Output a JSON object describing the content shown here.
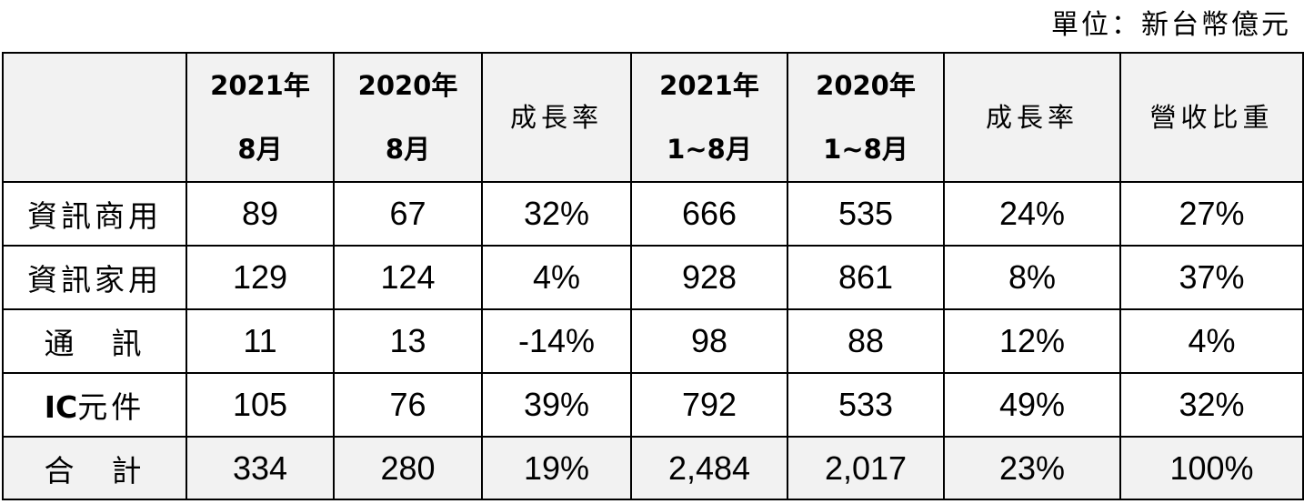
{
  "unit_label": "單位：新台幣億元",
  "header": {
    "c0": "",
    "c1_l1": "2021年",
    "c1_l2": "8月",
    "c2_l1": "2020年",
    "c2_l2": "8月",
    "c3": "成長率",
    "c4_l1": "2021年",
    "c4_l2": "1~8月",
    "c5_l1": "2020年",
    "c5_l2": "1~8月",
    "c6": "成長率",
    "c7": "營收比重"
  },
  "rows": [
    {
      "label": "資訊商用",
      "v": [
        "89",
        "67",
        "32%",
        "666",
        "535",
        "24%",
        "27%"
      ]
    },
    {
      "label": "資訊家用",
      "v": [
        "129",
        "124",
        "4%",
        "928",
        "861",
        "8%",
        "37%"
      ]
    },
    {
      "label": "通　訊",
      "v": [
        "11",
        "13",
        "-14%",
        "98",
        "88",
        "12%",
        "4%"
      ]
    },
    {
      "label_prefix": "IC",
      "label_rest": "元件",
      "v": [
        "105",
        "76",
        "39%",
        "792",
        "533",
        "49%",
        "32%"
      ]
    },
    {
      "label": "合　計",
      "v": [
        "334",
        "280",
        "19%",
        "2,484",
        "2,017",
        "23%",
        "100%"
      ]
    }
  ]
}
